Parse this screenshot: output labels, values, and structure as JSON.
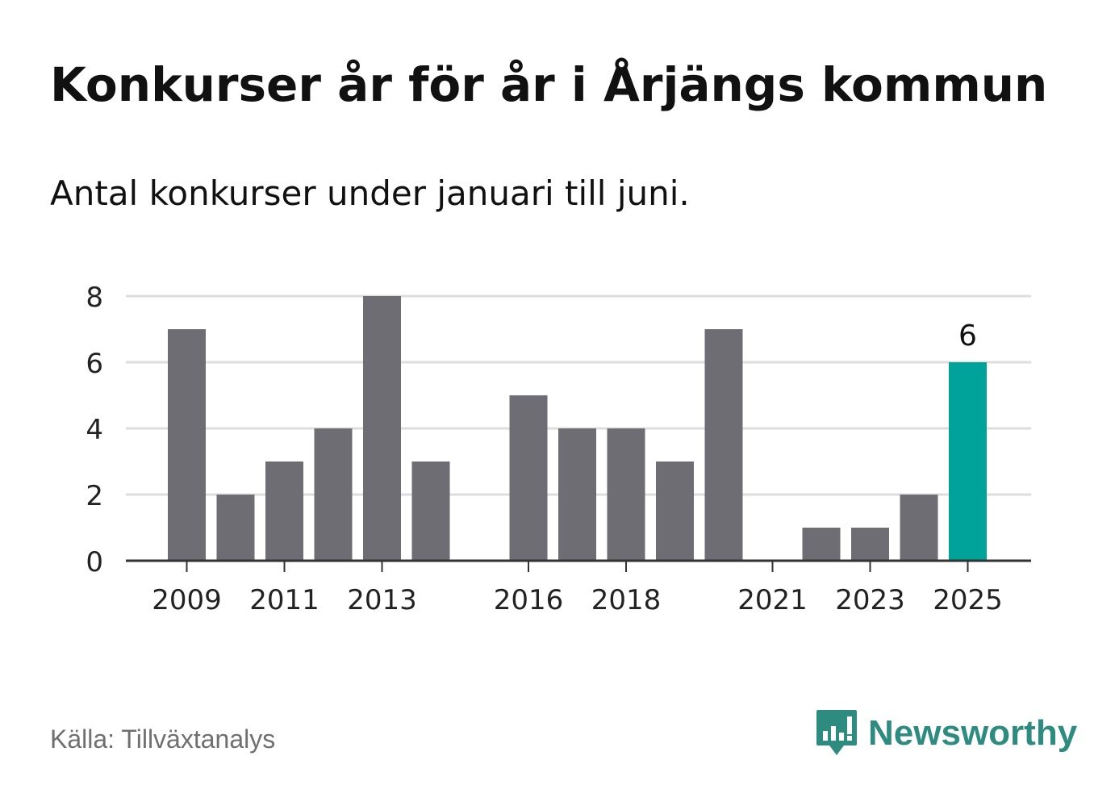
{
  "header": {
    "title": "Konkurser år för år i Årjängs kommun",
    "subtitle": "Antal konkurser under januari till juni."
  },
  "footer": {
    "source": "Källa: Tillväxtanalys",
    "brand": "Newsworthy",
    "brand_icon": "bar-chart-speech-bubble-icon"
  },
  "colors": {
    "bar": "#6e6d74",
    "highlight": "#00a399",
    "grid": "#dddddd",
    "axis": "#333333",
    "brand": "#2e8b80"
  },
  "chart_data": {
    "type": "bar",
    "categories": [
      "2009",
      "2010",
      "2011",
      "2012",
      "2013",
      "2014",
      "2015",
      "2016",
      "2017",
      "2018",
      "2019",
      "2020",
      "2021",
      "2022",
      "2023",
      "2024",
      "2025"
    ],
    "values": [
      7,
      2,
      3,
      4,
      8,
      3,
      0,
      5,
      4,
      4,
      3,
      7,
      0,
      1,
      1,
      2,
      6
    ],
    "x_tick_labels": [
      "2009",
      "2011",
      "2013",
      "2016",
      "2018",
      "2021",
      "2023",
      "2025"
    ],
    "y_ticks": [
      0,
      2,
      4,
      6,
      8
    ],
    "ylim": [
      0,
      8
    ],
    "grid": true,
    "highlight_category": "2025",
    "data_labels": [
      {
        "category": "2025",
        "text": "6"
      }
    ],
    "xlabel": "",
    "ylabel": ""
  }
}
